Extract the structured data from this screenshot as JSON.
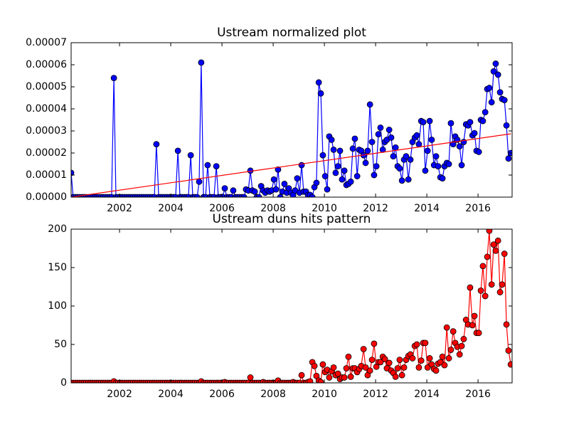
{
  "chart_data": [
    {
      "type": "line",
      "title": "Ustream normalized plot",
      "x": [
        2000.11,
        2000.19,
        2000.28,
        2000.36,
        2000.44,
        2000.53,
        2000.61,
        2000.69,
        2000.78,
        2000.86,
        2000.94,
        2001.03,
        2001.11,
        2001.19,
        2001.28,
        2001.36,
        2001.44,
        2001.53,
        2001.61,
        2001.69,
        2001.78,
        2001.86,
        2001.94,
        2002.03,
        2002.11,
        2002.19,
        2002.28,
        2002.36,
        2002.44,
        2002.53,
        2002.61,
        2002.69,
        2002.78,
        2002.86,
        2002.94,
        2003.03,
        2003.11,
        2003.19,
        2003.28,
        2003.36,
        2003.44,
        2003.53,
        2003.61,
        2003.69,
        2003.78,
        2003.86,
        2003.94,
        2004.03,
        2004.11,
        2004.19,
        2004.28,
        2004.36,
        2004.44,
        2004.53,
        2004.61,
        2004.69,
        2004.78,
        2004.86,
        2004.94,
        2005.03,
        2005.11,
        2005.19,
        2005.28,
        2005.36,
        2005.44,
        2005.53,
        2005.61,
        2005.69,
        2005.78,
        2005.86,
        2005.94,
        2006.03,
        2006.11,
        2006.19,
        2006.28,
        2006.36,
        2006.44,
        2006.53,
        2006.61,
        2006.69,
        2006.78,
        2006.86,
        2006.94,
        2007.03,
        2007.11,
        2007.19,
        2007.28,
        2007.36,
        2007.44,
        2007.53,
        2007.61,
        2007.69,
        2007.78,
        2007.86,
        2007.94,
        2008.03,
        2008.11,
        2008.19,
        2008.28,
        2008.36,
        2008.44,
        2008.53,
        2008.61,
        2008.69,
        2008.78,
        2008.86,
        2008.94,
        2009.03,
        2009.11,
        2009.19,
        2009.28,
        2009.36,
        2009.44,
        2009.53,
        2009.61,
        2009.69,
        2009.78,
        2009.86,
        2009.94,
        2010.03,
        2010.11,
        2010.19,
        2010.28,
        2010.36,
        2010.44,
        2010.53,
        2010.61,
        2010.69,
        2010.78,
        2010.86,
        2010.94,
        2011.03,
        2011.11,
        2011.19,
        2011.28,
        2011.36,
        2011.44,
        2011.53,
        2011.61,
        2011.69,
        2011.78,
        2011.86,
        2011.94,
        2012.03,
        2012.11,
        2012.19,
        2012.28,
        2012.36,
        2012.44,
        2012.53,
        2012.61,
        2012.69,
        2012.78,
        2012.86,
        2012.94,
        2013.03,
        2013.11,
        2013.19,
        2013.28,
        2013.36,
        2013.44,
        2013.53,
        2013.61,
        2013.69,
        2013.78,
        2013.86,
        2013.94,
        2014.03,
        2014.11,
        2014.19,
        2014.28,
        2014.36,
        2014.44,
        2014.53,
        2014.61,
        2014.69,
        2014.78,
        2014.86,
        2014.94,
        2015.03,
        2015.11,
        2015.19,
        2015.28,
        2015.36,
        2015.44,
        2015.53,
        2015.61,
        2015.69,
        2015.78,
        2015.86,
        2015.94,
        2016.03,
        2016.11,
        2016.19,
        2016.28,
        2016.36,
        2016.44,
        2016.53,
        2016.61,
        2016.69,
        2016.78,
        2016.86,
        2016.94,
        2017.03,
        2017.11,
        2017.19,
        2017.28
      ],
      "series": [
        {
          "color": "#0000ff",
          "values": [
            1.1e-05,
            0,
            0,
            0,
            0,
            0,
            0,
            0,
            0,
            0,
            0,
            0,
            0,
            0,
            0,
            0,
            0,
            0,
            0,
            0,
            5.4e-05,
            0,
            0,
            0,
            0,
            0,
            0,
            0,
            0,
            0,
            0,
            0,
            0,
            0,
            0,
            0,
            0,
            0,
            0,
            0,
            2.4e-05,
            0,
            0,
            0,
            0,
            0,
            0,
            0,
            0,
            0,
            2.1e-05,
            0,
            0,
            0,
            0,
            0,
            1.9e-05,
            0,
            0,
            0,
            7e-06,
            6.1e-05,
            0,
            0,
            1.45e-05,
            0,
            0,
            0,
            1.4e-05,
            0,
            0,
            0,
            4e-06,
            0,
            0,
            0,
            3e-06,
            0,
            0,
            0,
            0,
            0,
            3.5e-06,
            3e-06,
            1.2e-05,
            3e-06,
            2.5e-06,
            0,
            0,
            5e-06,
            3e-06,
            2e-06,
            3e-06,
            2.5e-06,
            3e-06,
            8e-06,
            3.5e-06,
            1.25e-05,
            0,
            2.5e-06,
            6e-06,
            2e-06,
            4e-06,
            2e-06,
            1e-06,
            3e-06,
            8.5e-06,
            2e-06,
            1.45e-05,
            2.5e-06,
            2.5e-06,
            1e-06,
            1e-06,
            0,
            4.5e-06,
            6.5e-06,
            5.2e-05,
            4.7e-05,
            1.9e-05,
            9.5e-06,
            3.5e-06,
            2.75e-05,
            2.6e-05,
            2.15e-05,
            1.1e-05,
            1.4e-05,
            2.1e-05,
            8e-06,
            1.2e-05,
            5.5e-06,
            6e-06,
            7e-06,
            2.2e-05,
            2.65e-05,
            9.5e-06,
            2.15e-05,
            2.1e-05,
            1.9e-05,
            1.55e-05,
            2.1e-05,
            4.2e-05,
            2.5e-05,
            1e-05,
            1.4e-05,
            2.85e-05,
            3.15e-05,
            2.15e-05,
            2.5e-05,
            2.6e-05,
            3.05e-05,
            2.7e-05,
            1.85e-05,
            2.25e-05,
            1.4e-05,
            1.3e-05,
            7.5e-06,
            1.7e-05,
            1.85e-05,
            8e-06,
            1.7e-05,
            2.5e-05,
            2.7e-05,
            2.8e-05,
            2.4e-05,
            3.45e-05,
            3.4e-05,
            1.2e-05,
            2.1e-05,
            3.45e-05,
            2.6e-05,
            1.45e-05,
            1.85e-05,
            1.4e-05,
            9e-06,
            8.5e-06,
            1.4e-05,
            1.55e-05,
            1.5e-05,
            3.35e-05,
            2.4e-05,
            2.75e-05,
            2.6e-05,
            2.3e-05,
            1.45e-05,
            2.5e-05,
            3.3e-05,
            3.25e-05,
            3.4e-05,
            2.8e-05,
            2.9e-05,
            2.1e-05,
            2.05e-05,
            3.5e-05,
            3.45e-05,
            3.85e-05,
            4.9e-05,
            4.95e-05,
            4.3e-05,
            5.7e-05,
            6.05e-05,
            5.55e-05,
            4.75e-05,
            4.45e-05,
            4.4e-05,
            3.25e-05,
            1.75e-05,
            2e-05
          ]
        }
      ],
      "trend": {
        "color": "#ff0000",
        "x": [
          2000.11,
          2017.28
        ],
        "values": [
          0,
          2.87e-05
        ]
      },
      "xlim": [
        2000.11,
        2017.33
      ],
      "xticks": [
        2002,
        2004,
        2006,
        2008,
        2010,
        2012,
        2014,
        2016
      ],
      "ylim": [
        0,
        7e-05
      ],
      "yticks": [
        {
          "value": 0,
          "label": "0.00000"
        },
        1e-05,
        2e-05,
        3e-05,
        4e-05,
        5e-05,
        6e-05,
        7e-05
      ]
    },
    {
      "type": "line",
      "title": "Ustream duns hits pattern",
      "x": [
        2000.11,
        2000.19,
        2000.28,
        2000.36,
        2000.44,
        2000.53,
        2000.61,
        2000.69,
        2000.78,
        2000.86,
        2000.94,
        2001.03,
        2001.11,
        2001.19,
        2001.28,
        2001.36,
        2001.44,
        2001.53,
        2001.61,
        2001.69,
        2001.78,
        2001.86,
        2001.94,
        2002.03,
        2002.11,
        2002.19,
        2002.28,
        2002.36,
        2002.44,
        2002.53,
        2002.61,
        2002.69,
        2002.78,
        2002.86,
        2002.94,
        2003.03,
        2003.11,
        2003.19,
        2003.28,
        2003.36,
        2003.44,
        2003.53,
        2003.61,
        2003.69,
        2003.78,
        2003.86,
        2003.94,
        2004.03,
        2004.11,
        2004.19,
        2004.28,
        2004.36,
        2004.44,
        2004.53,
        2004.61,
        2004.69,
        2004.78,
        2004.86,
        2004.94,
        2005.03,
        2005.11,
        2005.19,
        2005.28,
        2005.36,
        2005.44,
        2005.53,
        2005.61,
        2005.69,
        2005.78,
        2005.86,
        2005.94,
        2006.03,
        2006.11,
        2006.19,
        2006.28,
        2006.36,
        2006.44,
        2006.53,
        2006.61,
        2006.69,
        2006.78,
        2006.86,
        2006.94,
        2007.03,
        2007.11,
        2007.19,
        2007.28,
        2007.36,
        2007.44,
        2007.53,
        2007.61,
        2007.69,
        2007.78,
        2007.86,
        2007.94,
        2008.03,
        2008.11,
        2008.19,
        2008.28,
        2008.36,
        2008.44,
        2008.53,
        2008.61,
        2008.69,
        2008.78,
        2008.86,
        2008.94,
        2009.03,
        2009.11,
        2009.19,
        2009.28,
        2009.36,
        2009.44,
        2009.53,
        2009.61,
        2009.69,
        2009.78,
        2009.86,
        2009.94,
        2010.03,
        2010.11,
        2010.19,
        2010.28,
        2010.36,
        2010.44,
        2010.53,
        2010.61,
        2010.69,
        2010.78,
        2010.86,
        2010.94,
        2011.03,
        2011.11,
        2011.19,
        2011.28,
        2011.36,
        2011.44,
        2011.53,
        2011.61,
        2011.69,
        2011.78,
        2011.86,
        2011.94,
        2012.03,
        2012.11,
        2012.19,
        2012.28,
        2012.36,
        2012.44,
        2012.53,
        2012.61,
        2012.69,
        2012.78,
        2012.86,
        2012.94,
        2013.03,
        2013.11,
        2013.19,
        2013.28,
        2013.36,
        2013.44,
        2013.53,
        2013.61,
        2013.69,
        2013.78,
        2013.86,
        2013.94,
        2014.03,
        2014.11,
        2014.19,
        2014.28,
        2014.36,
        2014.44,
        2014.53,
        2014.61,
        2014.69,
        2014.78,
        2014.86,
        2014.94,
        2015.03,
        2015.11,
        2015.19,
        2015.28,
        2015.36,
        2015.44,
        2015.53,
        2015.61,
        2015.69,
        2015.78,
        2015.86,
        2015.94,
        2016.03,
        2016.11,
        2016.19,
        2016.28,
        2016.36,
        2016.44,
        2016.53,
        2016.61,
        2016.69,
        2016.78,
        2016.86,
        2016.94,
        2017.03,
        2017.11,
        2017.19,
        2017.28
      ],
      "series": [
        {
          "color": "#ff0000",
          "values": [
            0,
            0,
            0,
            0,
            0,
            0,
            0,
            0,
            0,
            0,
            0,
            0,
            0,
            0,
            0,
            0,
            0,
            0,
            0,
            0,
            2,
            0,
            0,
            0,
            0,
            0,
            0,
            0,
            0,
            0,
            0,
            0,
            0,
            0,
            0,
            0,
            0,
            0,
            0,
            0,
            0,
            0,
            0,
            0,
            0,
            0,
            0,
            0,
            0,
            0,
            0,
            0,
            0,
            0,
            0,
            0,
            0,
            0,
            0,
            0,
            0,
            2,
            0,
            0,
            0,
            0,
            0,
            0,
            0,
            0,
            0,
            0,
            1,
            0,
            0,
            0,
            0,
            0,
            0,
            0,
            0,
            0,
            0,
            0,
            7,
            0,
            0,
            0,
            0,
            0,
            1,
            0,
            0,
            0,
            0,
            0,
            0,
            3,
            0,
            0,
            0,
            0,
            0,
            0,
            1,
            0,
            0,
            0,
            10,
            0,
            0,
            1,
            2,
            27,
            22,
            9,
            3,
            1,
            24,
            14,
            17,
            7,
            15,
            20,
            10,
            12,
            5,
            7,
            7,
            19,
            34,
            8,
            19,
            19,
            14,
            18,
            22,
            44,
            20,
            10,
            16,
            30,
            51,
            21,
            27,
            27,
            34,
            31,
            19,
            26,
            16,
            13,
            8,
            19,
            30,
            10,
            20,
            30,
            35,
            37,
            32,
            48,
            50,
            20,
            29,
            52,
            52,
            20,
            32,
            24,
            18,
            16,
            25,
            27,
            34,
            23,
            72,
            32,
            43,
            67,
            52,
            47,
            37,
            48,
            57,
            82,
            76,
            124,
            75,
            87,
            65,
            65,
            120,
            152,
            113,
            164,
            198,
            128,
            180,
            172,
            185,
            118,
            128,
            168,
            76,
            42,
            24
          ]
        }
      ],
      "xlim": [
        2000.11,
        2017.33
      ],
      "xticks": [
        2002,
        2004,
        2006,
        2008,
        2010,
        2012,
        2014,
        2016
      ],
      "ylim": [
        0,
        200
      ],
      "yticks": [
        0,
        50,
        100,
        150,
        200
      ]
    }
  ]
}
